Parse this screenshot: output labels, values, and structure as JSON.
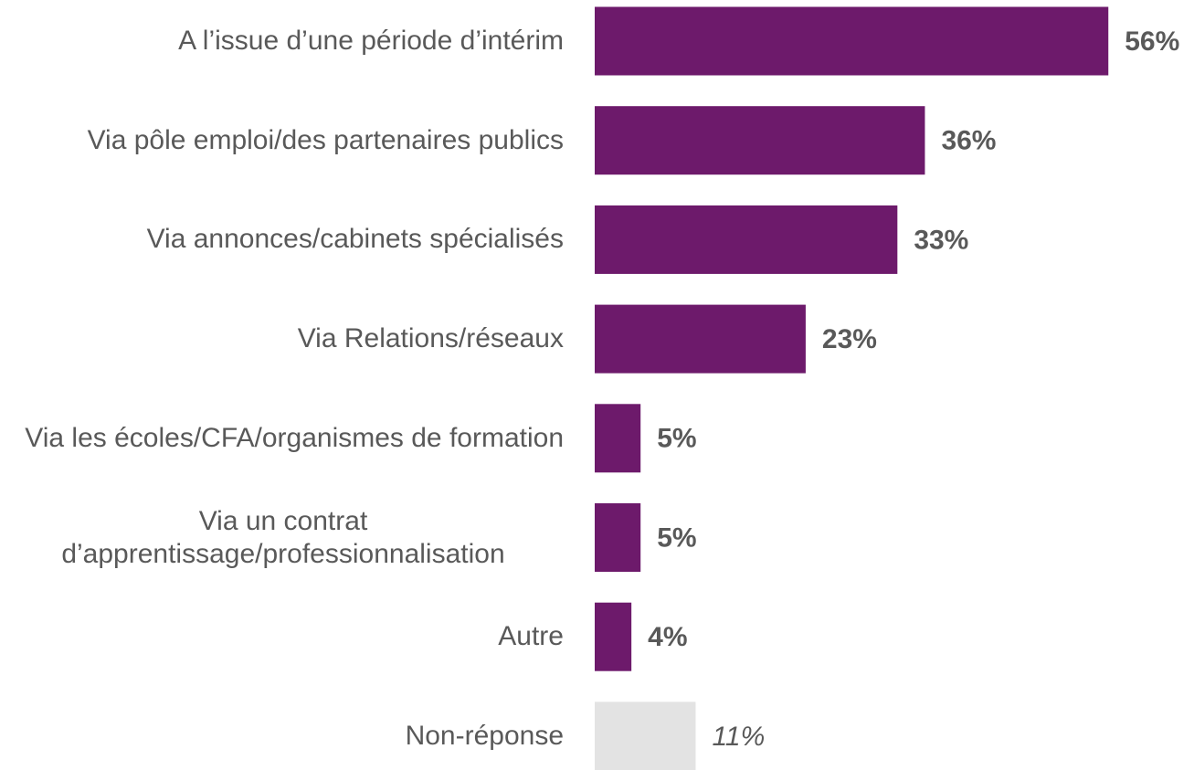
{
  "chart_data": {
    "type": "barh",
    "categories": [
      "A l’issue d’une période d’intérim",
      "Via pôle emploi/des partenaires publics",
      "Via annonces/cabinets spécialisés",
      "Via Relations/réseaux",
      "Via les écoles/CFA/organismes de formation",
      "Via un contrat d’apprentissage/professionnalisation",
      "Autre",
      "Non-réponse"
    ],
    "values": [
      56,
      36,
      33,
      23,
      5,
      5,
      4,
      11
    ],
    "value_labels": [
      "56%",
      "36%",
      "33%",
      "23%",
      "5%",
      "5%",
      "4%",
      "11%"
    ],
    "colors": [
      "#6d1a6b",
      "#6d1a6b",
      "#6d1a6b",
      "#6d1a6b",
      "#6d1a6b",
      "#6d1a6b",
      "#6d1a6b",
      "#e3e3e3"
    ],
    "value_label_styles": [
      "bold",
      "bold",
      "bold",
      "bold",
      "bold",
      "bold",
      "bold",
      "italic"
    ]
  }
}
